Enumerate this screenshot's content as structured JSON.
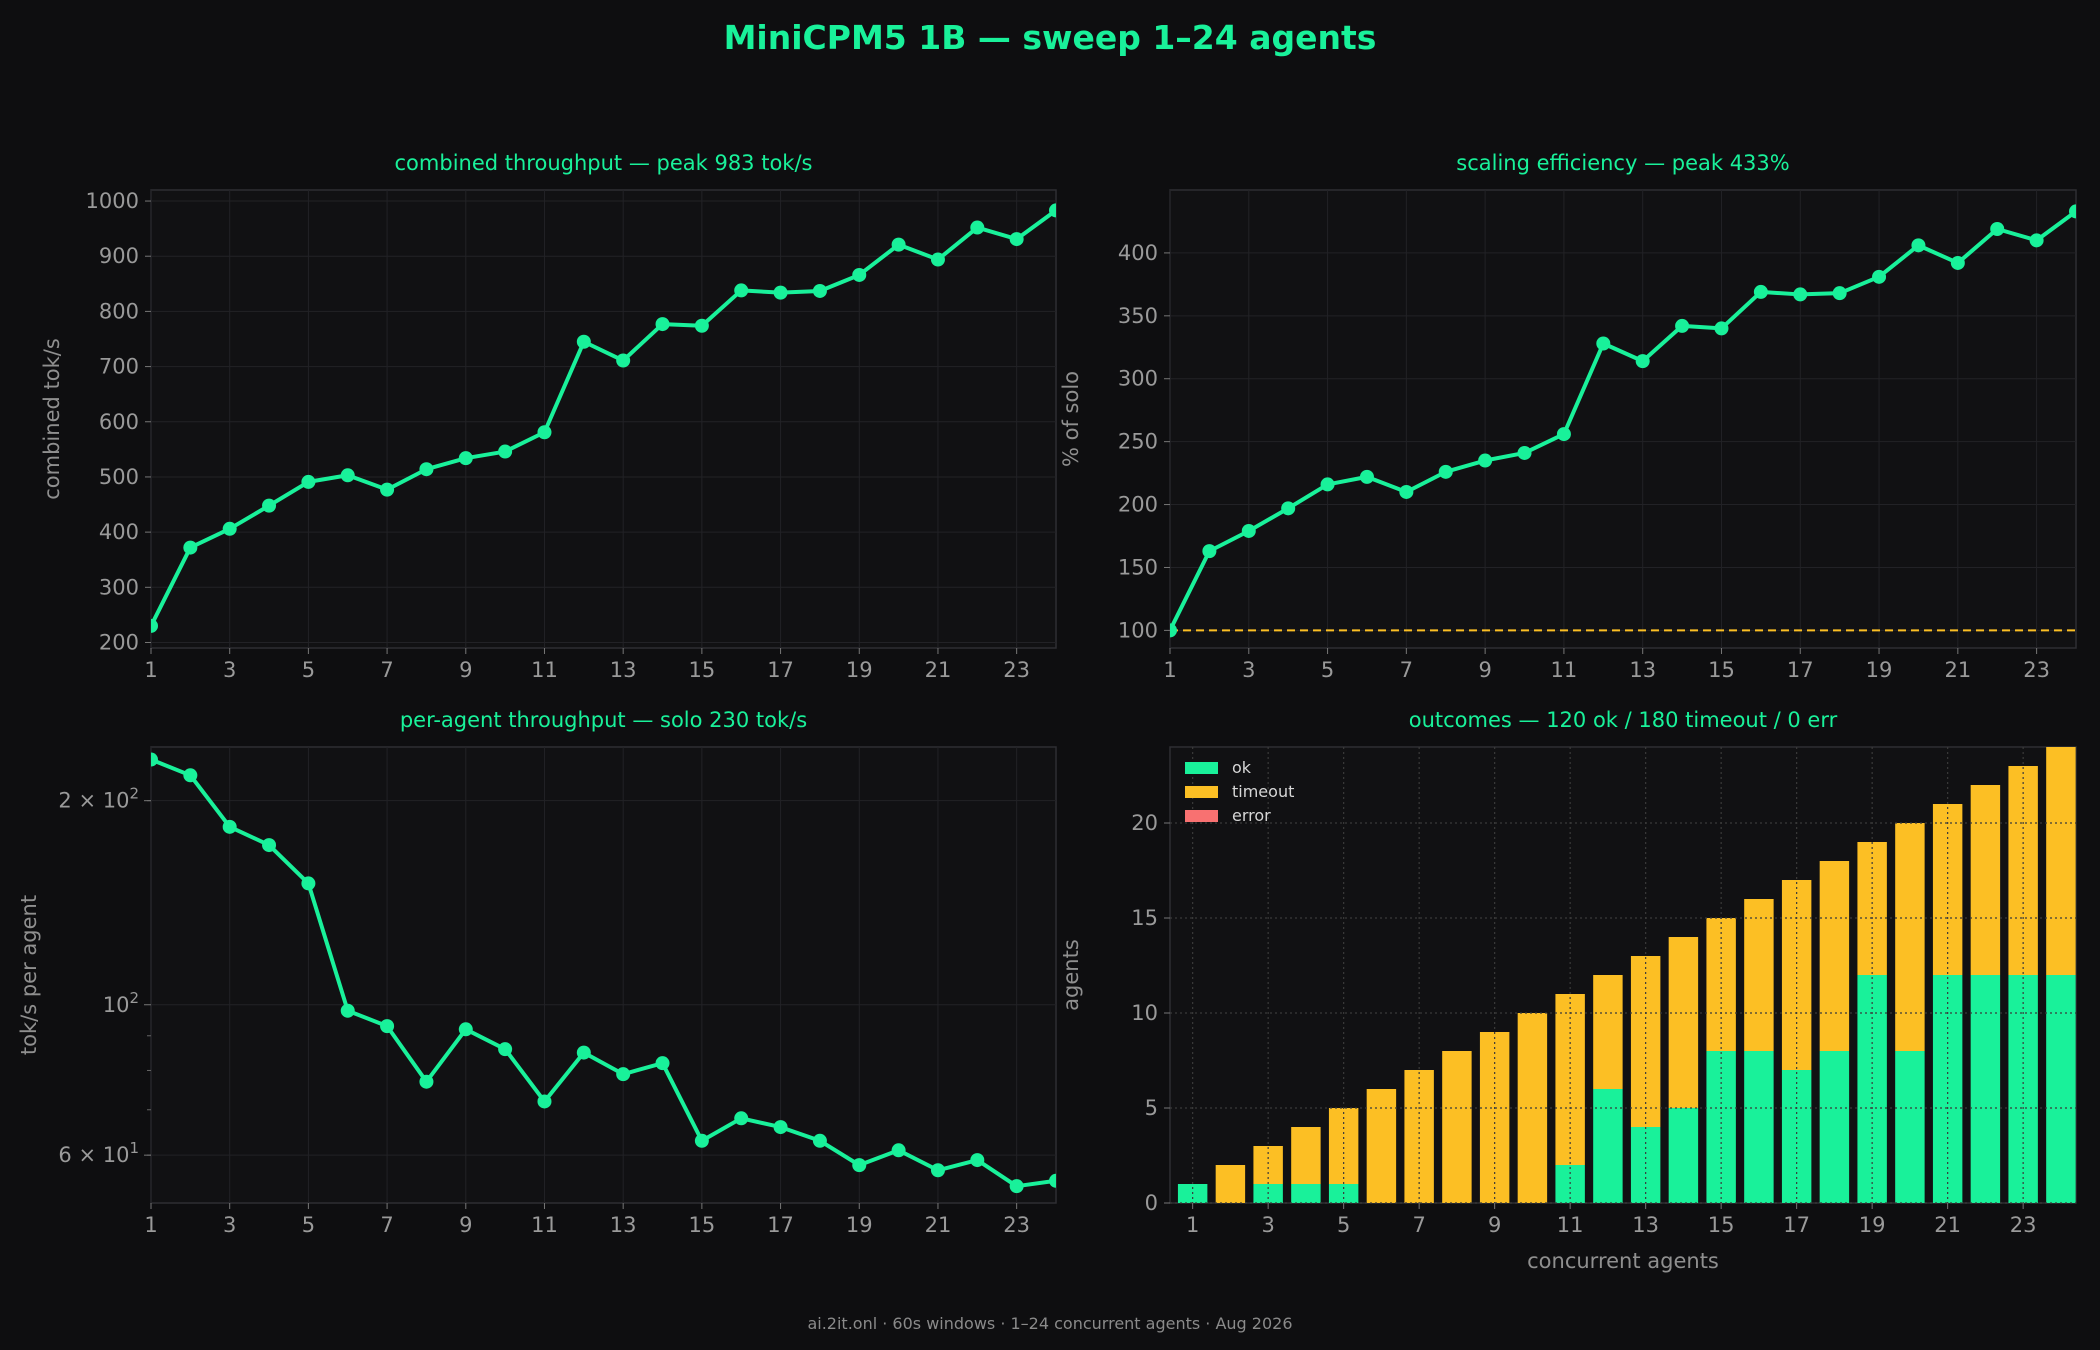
{
  "figure": {
    "title": "MiniCPM5 1B — sweep 1–24 agents",
    "footer": "ai.2it.onl · 60s windows · 1–24 concurrent agents · Aug 2026"
  },
  "colors": {
    "background": "#0e0e10",
    "axes_bg": "#111113",
    "accent": "#19f19a",
    "ok": "#19f19a",
    "timeout": "#fcbf24",
    "error": "#f87171",
    "baseline": "#fcbf24",
    "tick_text": "#9a9a9a",
    "grid": "#222226"
  },
  "chart_data": [
    {
      "id": "combined",
      "type": "line",
      "title": "combined throughput — peak 983 tok/s",
      "xlabel": "",
      "ylabel": "combined tok/s",
      "x": [
        1,
        2,
        3,
        4,
        5,
        6,
        7,
        8,
        9,
        10,
        11,
        12,
        13,
        14,
        15,
        16,
        17,
        18,
        19,
        20,
        21,
        22,
        23,
        24
      ],
      "values": [
        230,
        372,
        406,
        448,
        491,
        503,
        477,
        514,
        534,
        546,
        581,
        745,
        711,
        777,
        774,
        838,
        834,
        837,
        866,
        921,
        894,
        952,
        931,
        983
      ],
      "xlim": [
        1,
        24
      ],
      "ylim": [
        190,
        1020
      ],
      "xticks": [
        1,
        3,
        5,
        7,
        9,
        11,
        13,
        15,
        17,
        19,
        21,
        23
      ],
      "yticks": [
        200,
        300,
        400,
        500,
        600,
        700,
        800,
        900,
        1000
      ],
      "grid": true
    },
    {
      "id": "efficiency",
      "type": "line",
      "title": "scaling efficiency — peak 433%",
      "xlabel": "",
      "ylabel": "% of solo",
      "x": [
        1,
        2,
        3,
        4,
        5,
        6,
        7,
        8,
        9,
        10,
        11,
        12,
        13,
        14,
        15,
        16,
        17,
        18,
        19,
        20,
        21,
        22,
        23,
        24
      ],
      "values": [
        100,
        163,
        179,
        197,
        216,
        222,
        210,
        226,
        235,
        241,
        256,
        328,
        314,
        342,
        340,
        369,
        367,
        368,
        381,
        406,
        392,
        419,
        410,
        433
      ],
      "baseline": 100,
      "xlim": [
        1,
        24
      ],
      "ylim": [
        86,
        450
      ],
      "xticks": [
        1,
        3,
        5,
        7,
        9,
        11,
        13,
        15,
        17,
        19,
        21,
        23
      ],
      "yticks": [
        100,
        150,
        200,
        250,
        300,
        350,
        400
      ],
      "grid": true
    },
    {
      "id": "per_agent",
      "type": "line",
      "title": "per-agent throughput — solo 230 tok/s",
      "xlabel": "",
      "ylabel": "tok/s per agent",
      "yscale": "log",
      "x": [
        1,
        2,
        3,
        4,
        5,
        6,
        7,
        8,
        9,
        10,
        11,
        12,
        13,
        14,
        15,
        16,
        17,
        18,
        19,
        20,
        21,
        22,
        23,
        24
      ],
      "values": [
        230,
        218,
        183,
        172,
        151,
        98,
        93,
        77,
        92,
        86,
        72,
        85,
        79,
        82,
        63,
        68,
        66,
        63,
        58,
        61,
        57,
        59,
        54,
        55
      ],
      "xlim": [
        1,
        24
      ],
      "ylim": [
        51,
        240
      ],
      "xticks": [
        1,
        3,
        5,
        7,
        9,
        11,
        13,
        15,
        17,
        19,
        21,
        23
      ],
      "ytick_labels": [
        {
          "value": 200,
          "base": "2",
          "mult": "×",
          "ten": "10",
          "exp": "2"
        },
        {
          "value": 100,
          "base": "",
          "mult": "",
          "ten": "10",
          "exp": "2"
        },
        {
          "value": 60,
          "base": "6",
          "mult": "×",
          "ten": "10",
          "exp": "1"
        }
      ],
      "grid": true
    },
    {
      "id": "outcomes",
      "type": "bar",
      "stacked": true,
      "title": "outcomes — 120 ok / 180 timeout / 0 err",
      "xlabel": "concurrent agents",
      "ylabel": "agents",
      "x": [
        1,
        2,
        3,
        4,
        5,
        6,
        7,
        8,
        9,
        10,
        11,
        12,
        13,
        14,
        15,
        16,
        17,
        18,
        19,
        20,
        21,
        22,
        23,
        24
      ],
      "series": [
        {
          "name": "ok",
          "values": [
            1,
            0,
            1,
            1,
            1,
            0,
            0,
            0,
            0,
            0,
            2,
            6,
            4,
            5,
            8,
            8,
            7,
            8,
            12,
            8,
            12,
            12,
            12,
            12
          ]
        },
        {
          "name": "timeout",
          "values": [
            0,
            2,
            2,
            3,
            4,
            6,
            7,
            8,
            9,
            10,
            9,
            6,
            9,
            9,
            7,
            8,
            10,
            10,
            7,
            12,
            9,
            10,
            11,
            12
          ]
        },
        {
          "name": "error",
          "values": [
            0,
            0,
            0,
            0,
            0,
            0,
            0,
            0,
            0,
            0,
            0,
            0,
            0,
            0,
            0,
            0,
            0,
            0,
            0,
            0,
            0,
            0,
            0,
            0
          ]
        }
      ],
      "xlim": [
        0.4,
        24.4
      ],
      "ylim": [
        0,
        24
      ],
      "xticks": [
        1,
        3,
        5,
        7,
        9,
        11,
        13,
        15,
        17,
        19,
        21,
        23
      ],
      "yticks": [
        0,
        5,
        10,
        15,
        20
      ],
      "legend": "top-left",
      "grid": true
    }
  ]
}
